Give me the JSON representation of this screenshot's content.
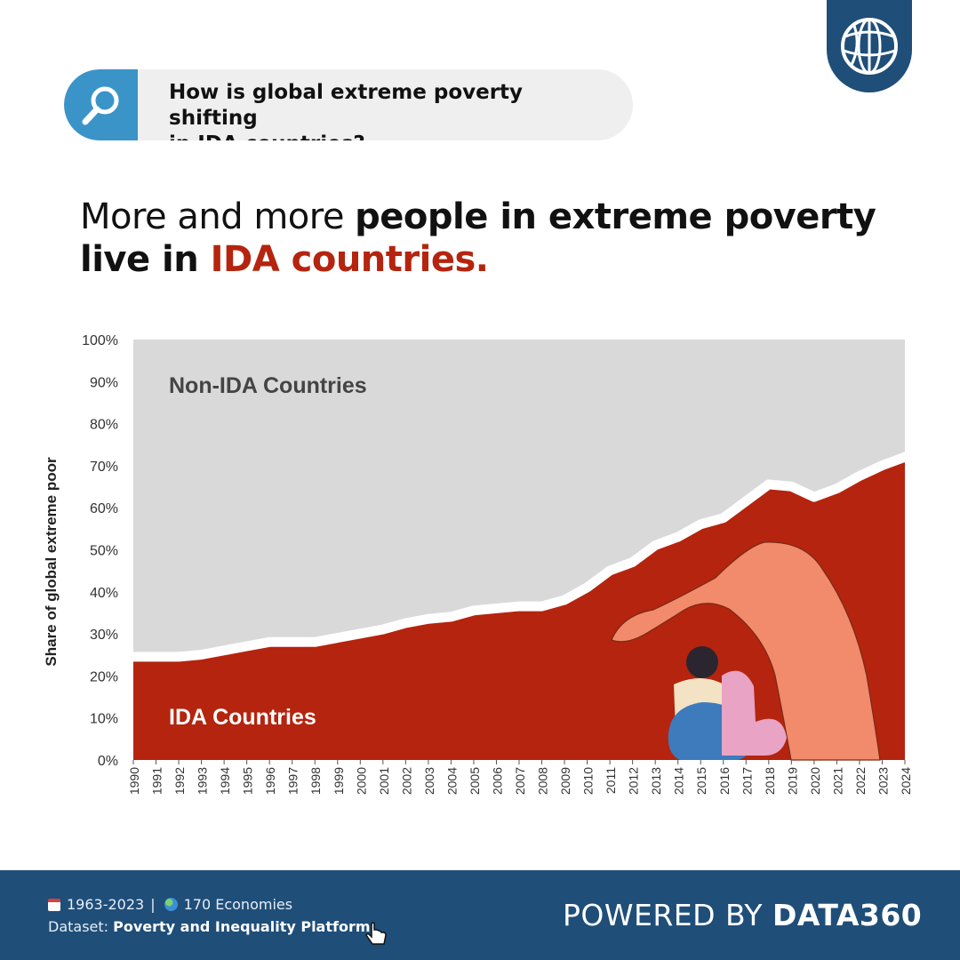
{
  "branding": {
    "logo_icon": "globe-logo-icon",
    "logo_bg": "#1f4e79"
  },
  "question": {
    "icon": "search-icon",
    "line1": "How is global extreme poverty shifting",
    "line2": "in IDA countries?"
  },
  "headline": {
    "part1": "More and more ",
    "part2": "people in extreme poverty",
    "part3": "live in ",
    "part4": "IDA countries",
    "part5": "."
  },
  "chart_data": {
    "type": "area",
    "ylabel": "Share of global extreme poor",
    "ylim": [
      0,
      100
    ],
    "y_ticks": [
      "0%",
      "10%",
      "20%",
      "30%",
      "40%",
      "50%",
      "60%",
      "70%",
      "80%",
      "90%",
      "100%"
    ],
    "x": [
      "1990",
      "1991",
      "1992",
      "1993",
      "1994",
      "1995",
      "1996",
      "1997",
      "1998",
      "1999",
      "2000",
      "2001",
      "2002",
      "2003",
      "2004",
      "2005",
      "2006",
      "2007",
      "2008",
      "2009",
      "2010",
      "2011",
      "2012",
      "2013",
      "2014",
      "2015",
      "2016",
      "2017",
      "2018",
      "2019",
      "2020",
      "2021",
      "2022",
      "2023",
      "2024"
    ],
    "series": [
      {
        "name": "IDA Countries",
        "color": "#b5240e",
        "values": [
          23.5,
          23.5,
          23.5,
          24,
          25,
          26,
          27,
          27,
          27,
          28,
          29,
          30,
          31.5,
          32.5,
          33,
          34.5,
          35,
          35.5,
          35.5,
          37,
          40,
          44,
          46,
          50,
          52,
          55,
          56.5,
          60.5,
          64.5,
          64,
          61.5,
          63.5,
          66.5,
          69,
          71
        ]
      },
      {
        "name": "Non-IDA Countries",
        "color": "#d9d9d9"
      }
    ],
    "grid": false,
    "trend_arrow": true
  },
  "footer": {
    "period": "1963-2023",
    "separator": "|",
    "economies": "170 Economies",
    "dataset_label": "Dataset:",
    "dataset_name": "Poverty and Inequality Platform",
    "powered_prefix": "POWERED BY",
    "powered_brand": "DATA360",
    "bg": "#1f4e79"
  }
}
